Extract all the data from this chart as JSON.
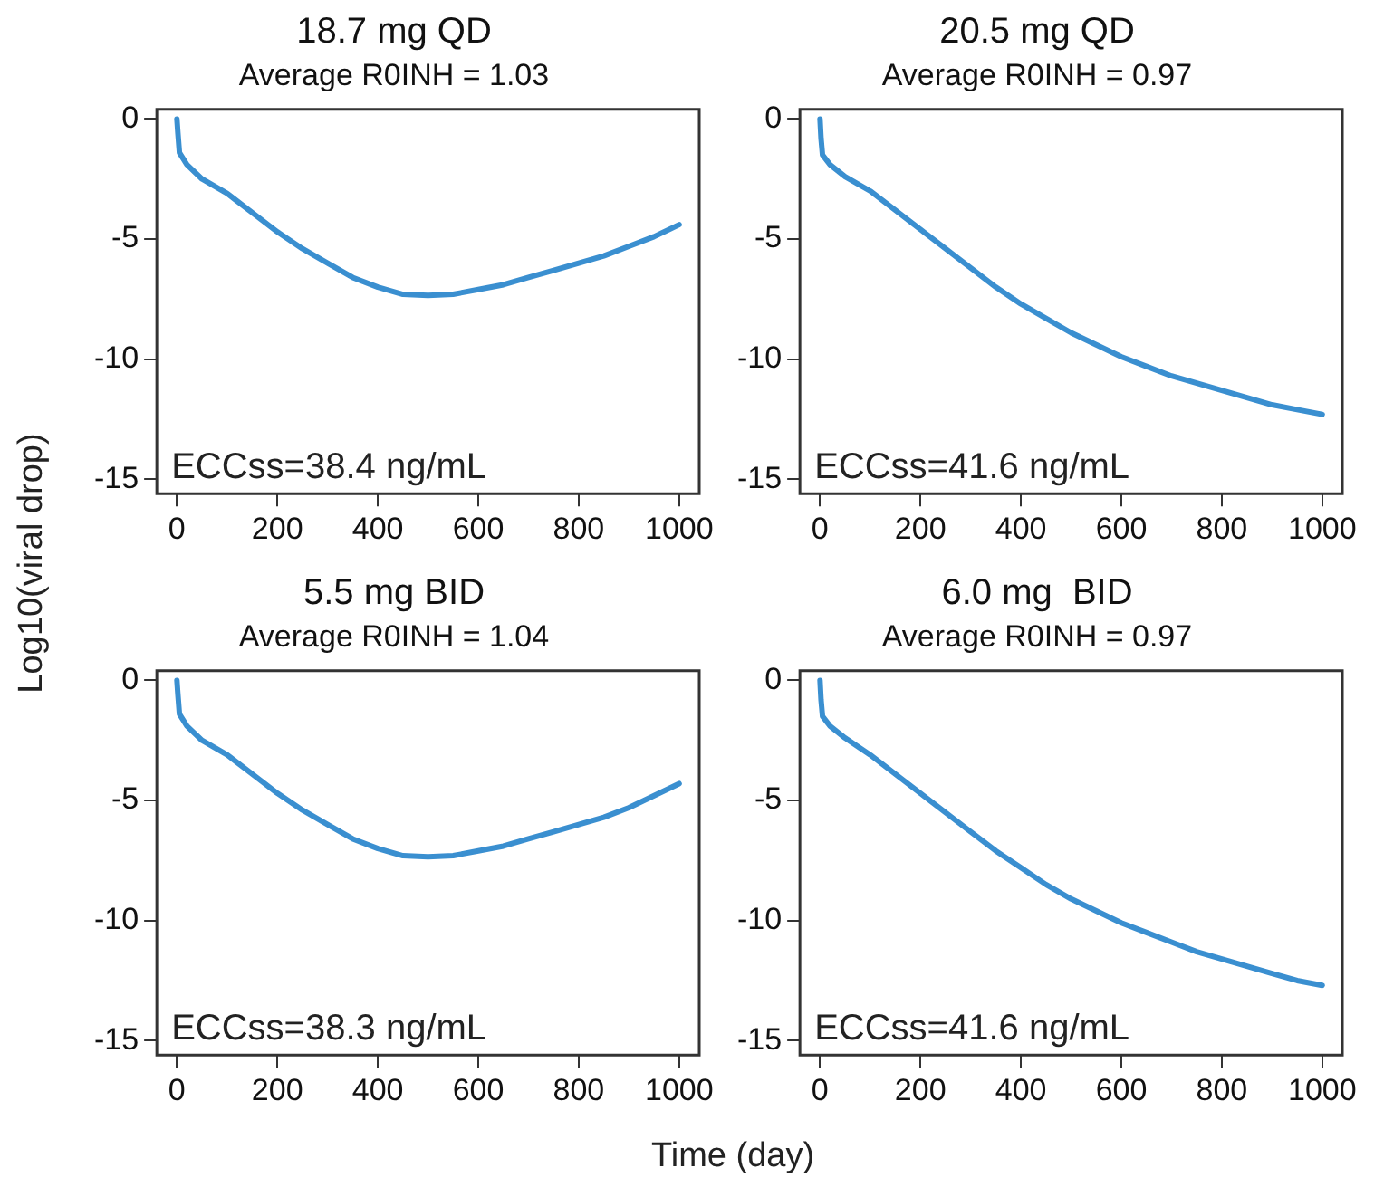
{
  "chart_data": [
    {
      "type": "line",
      "title": "18.7 mg QD",
      "subtitle": "Average R0INH = 1.03",
      "ylabel": "Log10(viral drop)",
      "annotations": [
        "ECCss=38.4 ng/mL"
      ],
      "marker": "none",
      "xlim": [
        -40,
        1040
      ],
      "ylim": [
        -15.6,
        0.4
      ],
      "xticks": [
        0,
        200,
        400,
        600,
        800,
        1000
      ],
      "yticks": [
        0,
        -5,
        -10,
        -15
      ],
      "x": [
        0,
        2,
        5,
        20,
        50,
        100,
        150,
        200,
        250,
        300,
        350,
        400,
        450,
        500,
        550,
        600,
        650,
        700,
        750,
        800,
        850,
        900,
        950,
        1000
      ],
      "series": [
        {
          "color": "#3a8fd0",
          "values": [
            0,
            -0.6,
            -1.4,
            -1.9,
            -2.5,
            -3.1,
            -3.9,
            -4.7,
            -5.4,
            -6.0,
            -6.6,
            -7.0,
            -7.3,
            -7.35,
            -7.3,
            -7.1,
            -6.9,
            -6.6,
            -6.3,
            -6.0,
            -5.7,
            -5.3,
            -4.9,
            -4.4
          ]
        }
      ]
    },
    {
      "type": "line",
      "title": "20.5 mg QD",
      "subtitle": "Average R0INH = 0.97",
      "annotations": [
        "ECCss=41.6 ng/mL"
      ],
      "marker": "none",
      "xlim": [
        -40,
        1040
      ],
      "ylim": [
        -15.6,
        0.4
      ],
      "xticks": [
        0,
        200,
        400,
        600,
        800,
        1000
      ],
      "yticks": [
        0,
        -5,
        -10,
        -15
      ],
      "x": [
        0,
        2,
        5,
        20,
        50,
        100,
        150,
        200,
        250,
        300,
        350,
        400,
        450,
        500,
        550,
        600,
        650,
        700,
        750,
        800,
        850,
        900,
        950,
        1000
      ],
      "series": [
        {
          "color": "#3a8fd0",
          "values": [
            0,
            -0.8,
            -1.5,
            -1.9,
            -2.4,
            -3.0,
            -3.8,
            -4.6,
            -5.4,
            -6.2,
            -7.0,
            -7.7,
            -8.3,
            -8.9,
            -9.4,
            -9.9,
            -10.3,
            -10.7,
            -11.0,
            -11.3,
            -11.6,
            -11.9,
            -12.1,
            -12.3
          ]
        }
      ]
    },
    {
      "type": "line",
      "title": "5.5 mg BID",
      "subtitle": "Average R0INH = 1.04",
      "xlabel": "Time (day)",
      "annotations": [
        "ECCss=38.3 ng/mL"
      ],
      "marker": "none",
      "xlim": [
        -40,
        1040
      ],
      "ylim": [
        -15.6,
        0.4
      ],
      "xticks": [
        0,
        200,
        400,
        600,
        800,
        1000
      ],
      "yticks": [
        0,
        -5,
        -10,
        -15
      ],
      "x": [
        0,
        2,
        5,
        20,
        50,
        100,
        150,
        200,
        250,
        300,
        350,
        400,
        450,
        500,
        550,
        600,
        650,
        700,
        750,
        800,
        850,
        900,
        950,
        1000
      ],
      "series": [
        {
          "color": "#3a8fd0",
          "values": [
            0,
            -0.6,
            -1.4,
            -1.9,
            -2.5,
            -3.1,
            -3.9,
            -4.7,
            -5.4,
            -6.0,
            -6.6,
            -7.0,
            -7.3,
            -7.35,
            -7.3,
            -7.1,
            -6.9,
            -6.6,
            -6.3,
            -6.0,
            -5.7,
            -5.3,
            -4.8,
            -4.3
          ]
        }
      ]
    },
    {
      "type": "line",
      "title": "6.0 mg  BID",
      "subtitle": "Average R0INH = 0.97",
      "annotations": [
        "ECCss=41.6 ng/mL"
      ],
      "marker": "none",
      "xlim": [
        -40,
        1040
      ],
      "ylim": [
        -15.6,
        0.4
      ],
      "xticks": [
        0,
        200,
        400,
        600,
        800,
        1000
      ],
      "yticks": [
        0,
        -5,
        -10,
        -15
      ],
      "x": [
        0,
        2,
        5,
        20,
        50,
        100,
        150,
        200,
        250,
        300,
        350,
        400,
        450,
        500,
        550,
        600,
        650,
        700,
        750,
        800,
        850,
        900,
        950,
        1000
      ],
      "series": [
        {
          "color": "#3a8fd0",
          "values": [
            0,
            -0.8,
            -1.5,
            -1.9,
            -2.4,
            -3.1,
            -3.9,
            -4.7,
            -5.5,
            -6.3,
            -7.1,
            -7.8,
            -8.5,
            -9.1,
            -9.6,
            -10.1,
            -10.5,
            -10.9,
            -11.3,
            -11.6,
            -11.9,
            -12.2,
            -12.5,
            -12.7
          ]
        }
      ]
    }
  ]
}
